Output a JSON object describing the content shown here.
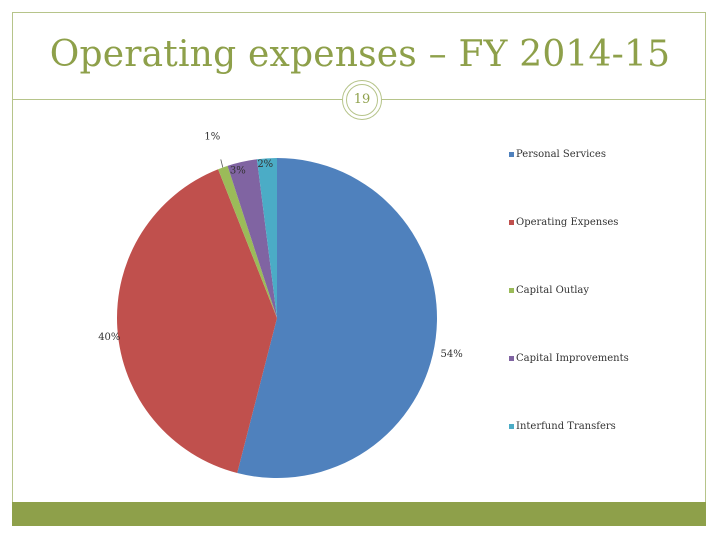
{
  "slide": {
    "title": "Operating expenses – FY 2014-15",
    "page_number": "19"
  },
  "colors": {
    "accent": "#8ea04a",
    "border": "#b6c48a"
  },
  "chart_data": {
    "type": "pie",
    "categories": [
      "Personal Services",
      "Operating Expenses",
      "Capital Outlay",
      "Capital Improvements",
      "Interfund Transfers"
    ],
    "values": [
      54,
      40,
      1,
      3,
      2
    ],
    "data_labels": [
      "54%",
      "40%",
      "1%",
      "3%",
      "2%"
    ],
    "colors": [
      "#4f81bd",
      "#c0504d",
      "#9bbb59",
      "#8064a2",
      "#4bacc6"
    ],
    "legend_position": "right"
  }
}
